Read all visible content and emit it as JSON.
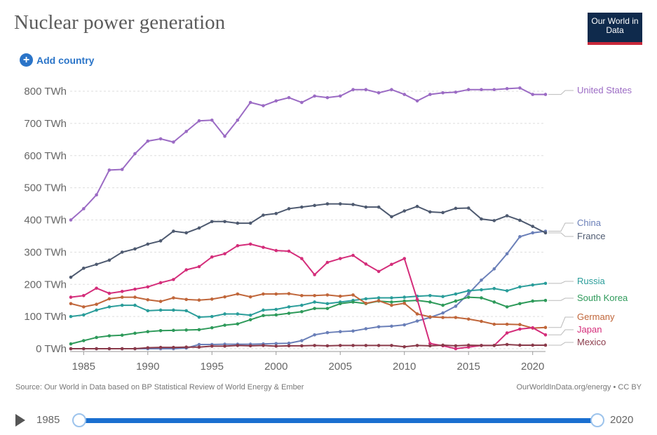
{
  "header": {
    "title": "Nuclear power generation",
    "logo": "Our World in Data",
    "add_country": "Add country"
  },
  "footer": {
    "source": "Source: Our World in Data based on BP Statistical Review of World Energy & Ember",
    "license": "OurWorldInData.org/energy • CC BY"
  },
  "timeline": {
    "start": "1985",
    "end": "2020"
  },
  "chart_data": {
    "type": "line",
    "title": "Nuclear power generation",
    "unit": "TWh",
    "xlim": [
      1984,
      2021
    ],
    "ylim": [
      0,
      800
    ],
    "xticks": [
      1985,
      1990,
      1995,
      2000,
      2005,
      2010,
      2015,
      2020
    ],
    "yticks": [
      "0 TWh",
      "100 TWh",
      "200 TWh",
      "300 TWh",
      "400 TWh",
      "500 TWh",
      "600 TWh",
      "700 TWh",
      "800 TWh"
    ],
    "grid": "horizontal dotted",
    "legend": "right, inline labels",
    "x_start": 1984,
    "series": [
      {
        "name": "United States",
        "color": "#9b6bc4",
        "values": [
          400,
          435,
          478,
          555,
          557,
          606,
          645,
          652,
          642,
          675,
          708,
          710,
          660,
          710,
          765,
          755,
          770,
          780,
          765,
          785,
          780,
          785,
          805,
          805,
          795,
          805,
          790,
          770,
          790,
          795,
          797,
          805,
          805,
          805,
          808,
          810,
          790,
          790
        ]
      },
      {
        "name": "China",
        "color": "#6a7fb8",
        "values": [
          0,
          0,
          0,
          0,
          0,
          0,
          0,
          0,
          0,
          2,
          13,
          13,
          14,
          14,
          14,
          15,
          16,
          17,
          25,
          43,
          50,
          53,
          55,
          62,
          68,
          70,
          74,
          86,
          97,
          111,
          132,
          171,
          213,
          248,
          295,
          348,
          360,
          365
        ]
      },
      {
        "name": "France",
        "color": "#4e5a70",
        "values": [
          222,
          250,
          262,
          275,
          300,
          310,
          325,
          335,
          365,
          360,
          375,
          395,
          395,
          390,
          390,
          415,
          420,
          435,
          440,
          445,
          450,
          450,
          448,
          440,
          440,
          410,
          428,
          442,
          425,
          423,
          436,
          437,
          403,
          398,
          413,
          399,
          380,
          360
        ]
      },
      {
        "name": "Russia",
        "color": "#2a9d9a",
        "values": [
          100,
          105,
          120,
          130,
          135,
          135,
          118,
          120,
          120,
          118,
          98,
          100,
          108,
          108,
          104,
          120,
          122,
          130,
          135,
          145,
          140,
          145,
          150,
          155,
          158,
          158,
          160,
          163,
          165,
          162,
          170,
          180,
          183,
          187,
          180,
          192,
          198,
          203
        ]
      },
      {
        "name": "South Korea",
        "color": "#2e9a5a",
        "values": [
          15,
          25,
          35,
          40,
          42,
          48,
          53,
          56,
          57,
          58,
          59,
          65,
          73,
          77,
          90,
          103,
          105,
          110,
          115,
          125,
          125,
          140,
          145,
          140,
          148,
          145,
          148,
          150,
          145,
          135,
          148,
          160,
          158,
          145,
          130,
          140,
          148,
          150
        ]
      },
      {
        "name": "Germany",
        "color": "#c0663a",
        "values": [
          140,
          130,
          138,
          155,
          160,
          160,
          152,
          147,
          158,
          153,
          151,
          154,
          161,
          170,
          161,
          170,
          170,
          171,
          165,
          165,
          167,
          163,
          167,
          141,
          149,
          135,
          141,
          108,
          99,
          97,
          97,
          92,
          85,
          76,
          76,
          75,
          64,
          66
        ]
      },
      {
        "name": "Japan",
        "color": "#d42d7a",
        "values": [
          160,
          165,
          188,
          172,
          178,
          185,
          192,
          205,
          215,
          245,
          255,
          285,
          295,
          320,
          325,
          315,
          305,
          303,
          280,
          230,
          268,
          280,
          290,
          263,
          240,
          262,
          280,
          153,
          16,
          9,
          0,
          5,
          10,
          10,
          49,
          61,
          65,
          43
        ]
      },
      {
        "name": "Mexico",
        "color": "#8a3a4a",
        "values": [
          0,
          0,
          0,
          0,
          0,
          0,
          3,
          4,
          4,
          5,
          5,
          8,
          8,
          10,
          9,
          10,
          8,
          9,
          9,
          10,
          9,
          10,
          10,
          10,
          10,
          10,
          6,
          10,
          9,
          11,
          9,
          11,
          10,
          10,
          13,
          11,
          11,
          11
        ]
      }
    ]
  }
}
